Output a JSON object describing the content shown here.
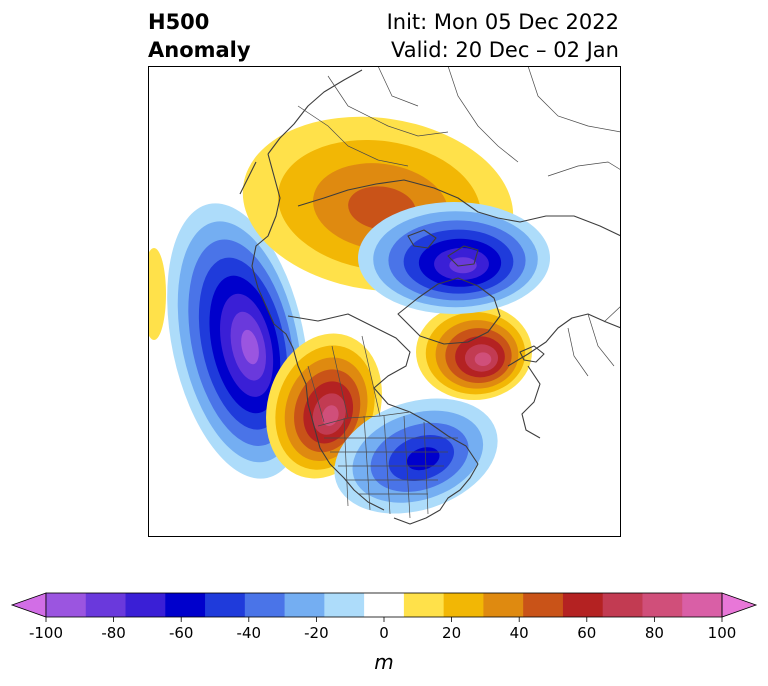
{
  "title": {
    "left": [
      "H500",
      "Anomaly"
    ],
    "right": [
      "Init: Mon 05 Dec 2022",
      "Valid: 20 Dec – 02 Jan"
    ]
  },
  "colorbar": {
    "unit": "m",
    "ticks": [
      "-100",
      "-80",
      "-60",
      "-40",
      "-20",
      "0",
      "20",
      "40",
      "60",
      "80",
      "100"
    ],
    "colors": [
      "#d26ee6",
      "#9b55e0",
      "#6a39dc",
      "#3a1fd6",
      "#0000cc",
      "#1f3bdb",
      "#4a74e8",
      "#74aef2",
      "#addcfa",
      "#ffffff",
      "#ffe14a",
      "#f2b705",
      "#df8a10",
      "#c95318",
      "#b42222",
      "#c23b52",
      "#d04f7a",
      "#d95fa6",
      "#e877d8"
    ],
    "extend": "both"
  },
  "anomalies": [
    {
      "name": "gulf-of-alaska-low",
      "sign": "negative",
      "peak_m": -95
    },
    {
      "name": "western-north-america-ridge",
      "sign": "positive",
      "peak_m": 75
    },
    {
      "name": "eastern-north-america-trough",
      "sign": "negative",
      "peak_m": -60
    },
    {
      "name": "north-atlantic-ridge",
      "sign": "positive",
      "peak_m": 70
    },
    {
      "name": "siberian-ridge",
      "sign": "positive",
      "peak_m": 45
    },
    {
      "name": "arctic-low",
      "sign": "negative",
      "peak_m": -80
    },
    {
      "name": "north-pacific-edge-ridge",
      "sign": "positive",
      "peak_m": 20
    }
  ]
}
